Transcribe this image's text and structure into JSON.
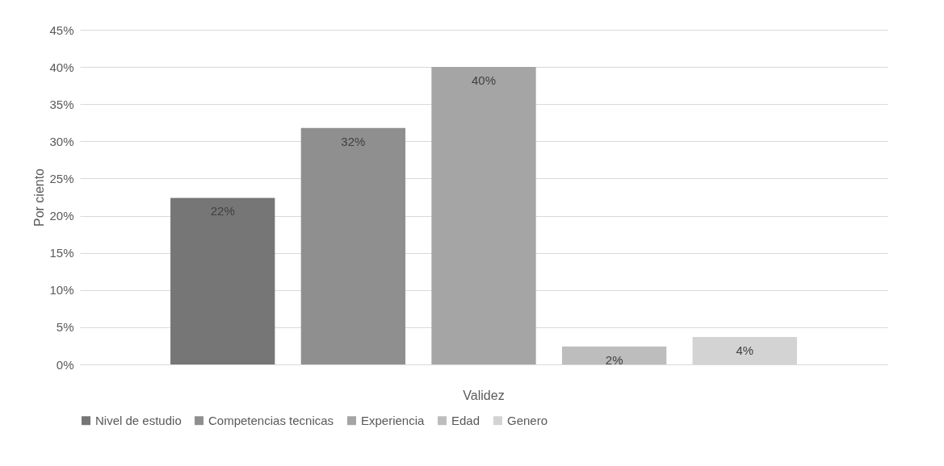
{
  "chart_data": {
    "type": "bar",
    "categories": [
      "Validez"
    ],
    "ylabel": "Por ciento",
    "series": [
      {
        "name": "Nivel de estudio",
        "color": "#767676",
        "values": [
          22.4
        ],
        "value_labels": [
          "22%"
        ]
      },
      {
        "name": "Competencias tecnicas",
        "color": "#8f8f8f",
        "values": [
          31.8
        ],
        "value_labels": [
          "32%"
        ]
      },
      {
        "name": "Experiencia",
        "color": "#a5a5a5",
        "values": [
          40
        ],
        "value_labels": [
          "40%"
        ]
      },
      {
        "name": "Edad",
        "color": "#bdbdbd",
        "values": [
          2.4
        ],
        "value_labels": [
          "2%"
        ]
      },
      {
        "name": "Genero",
        "color": "#d3d3d3",
        "values": [
          3.7
        ],
        "value_labels": [
          "4%"
        ]
      }
    ],
    "ylim": [
      0,
      45
    ],
    "yticks": [
      {
        "value": 0,
        "label": "0%"
      },
      {
        "value": 5,
        "label": "5%"
      },
      {
        "value": 10,
        "label": "10%"
      },
      {
        "value": 15,
        "label": "15%"
      },
      {
        "value": 20,
        "label": "20%"
      },
      {
        "value": 25,
        "label": "25%"
      },
      {
        "value": 30,
        "label": "30%"
      },
      {
        "value": 35,
        "label": "35%"
      },
      {
        "value": 40,
        "label": "40%"
      },
      {
        "value": 45,
        "label": "45%"
      }
    ],
    "grid": "y",
    "legend": "bottom"
  }
}
